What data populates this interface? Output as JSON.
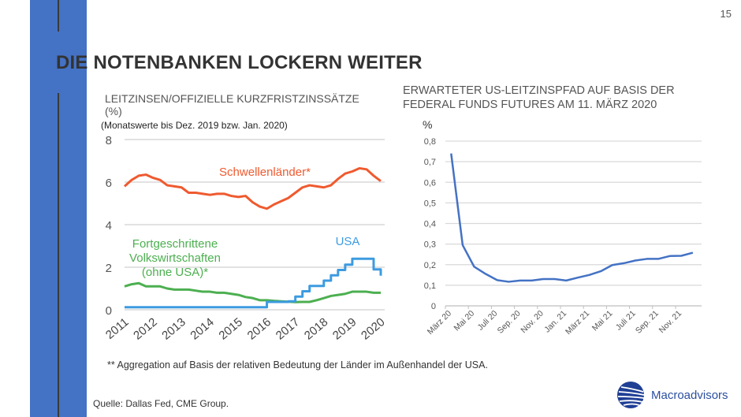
{
  "page_number": "15",
  "title": "DIE NOTENBANKEN LOCKERN WEITER",
  "colors": {
    "accent_bar": "#4472c4",
    "emerging": "#ef5a2f",
    "advanced": "#4caf50",
    "usa": "#3d9be0",
    "us_path": "#4472c4"
  },
  "left_chart_header": {
    "line1": "LEITZINSEN/OFFIZIELLE KURZFRISTZINSSÄTZE",
    "line2": "(%)",
    "note": "(Monatswerte bis Dez. 2019 bzw. Jan. 2020)"
  },
  "right_chart_header": {
    "line1": "ERWARTETER US-LEITZINSPFAD AUF BASIS DER",
    "line2": "FEDERAL FUNDS FUTURES AM 11. MÄRZ 2020"
  },
  "footnote": "** Aggregation auf Basis der relativen Bedeutung der Länder im Außenhandel der USA.",
  "source": "Quelle: Dallas Fed, CME Group.",
  "logo_text": "Macroadvisors",
  "chart_data": [
    {
      "type": "line",
      "title": "LEITZINSEN/OFFIZIELLE KURZFRISTZINSSÄTZE (%)",
      "ylim": [
        0,
        8
      ],
      "yticks": [
        "0",
        "2",
        "4",
        "6",
        "8"
      ],
      "xticks": [
        "2011",
        "2012",
        "2013",
        "2014",
        "2015",
        "2016",
        "2017",
        "2018",
        "2019",
        "2020"
      ],
      "grid": true,
      "x": [
        "2011-Q1",
        "2011-Q2",
        "2011-Q3",
        "2011-Q4",
        "2012-Q1",
        "2012-Q2",
        "2012-Q3",
        "2012-Q4",
        "2013-Q1",
        "2013-Q2",
        "2013-Q3",
        "2013-Q4",
        "2014-Q1",
        "2014-Q2",
        "2014-Q3",
        "2014-Q4",
        "2015-Q1",
        "2015-Q2",
        "2015-Q3",
        "2015-Q4",
        "2016-Q1",
        "2016-Q2",
        "2016-Q3",
        "2016-Q4",
        "2017-Q1",
        "2017-Q2",
        "2017-Q3",
        "2017-Q4",
        "2018-Q1",
        "2018-Q2",
        "2018-Q3",
        "2018-Q4",
        "2019-Q1",
        "2019-Q2",
        "2019-Q3",
        "2019-Q4",
        "2020-Q1"
      ],
      "series": [
        {
          "name": "Schwellenländer*",
          "color": "#ef5a2f",
          "values": [
            5.8,
            6.1,
            6.3,
            6.35,
            6.2,
            6.1,
            5.85,
            5.8,
            5.75,
            5.5,
            5.5,
            5.45,
            5.4,
            5.45,
            5.45,
            5.35,
            5.3,
            5.35,
            5.05,
            4.85,
            4.75,
            4.95,
            5.1,
            5.25,
            5.5,
            5.75,
            5.85,
            5.8,
            5.75,
            5.85,
            6.15,
            6.4,
            6.5,
            6.65,
            6.6,
            6.3,
            6.05
          ]
        },
        {
          "name": "Fortgeschrittene Volkswirtschaften (ohne USA)*",
          "label_lines": [
            "Fortgeschrittene",
            "Volkswirtschaften",
            "(ohne USA)*"
          ],
          "color": "#4caf50",
          "values": [
            1.1,
            1.2,
            1.25,
            1.1,
            1.1,
            1.1,
            1.0,
            0.95,
            0.95,
            0.95,
            0.9,
            0.85,
            0.85,
            0.8,
            0.8,
            0.75,
            0.7,
            0.6,
            0.55,
            0.45,
            0.45,
            0.42,
            0.4,
            0.38,
            0.36,
            0.37,
            0.37,
            0.45,
            0.55,
            0.65,
            0.7,
            0.75,
            0.85,
            0.85,
            0.85,
            0.8,
            0.8
          ]
        },
        {
          "name": "USA",
          "color": "#3d9be0",
          "step": true,
          "values": [
            0.12,
            0.12,
            0.12,
            0.12,
            0.12,
            0.12,
            0.12,
            0.12,
            0.12,
            0.12,
            0.12,
            0.12,
            0.12,
            0.12,
            0.12,
            0.12,
            0.12,
            0.12,
            0.12,
            0.12,
            0.37,
            0.37,
            0.37,
            0.4,
            0.62,
            0.87,
            1.12,
            1.12,
            1.37,
            1.62,
            1.87,
            2.12,
            2.4,
            2.4,
            2.4,
            1.9,
            1.6
          ]
        }
      ]
    },
    {
      "type": "line",
      "title": "ERWARTETER US-LEITZINSPFAD AUF BASIS DER FEDERAL FUNDS FUTURES AM 11. MÄRZ 2020",
      "ylabel": "%",
      "ylim": [
        0,
        0.8
      ],
      "yticks": [
        "0",
        "0,1",
        "0,2",
        "0,3",
        "0,4",
        "0,5",
        "0,6",
        "0,7",
        "0,8"
      ],
      "xticks": [
        "März 20",
        "Mai 20",
        "Juli 20",
        "Sep. 20",
        "Nov. 20",
        "Jan. 21",
        "März 21",
        "Mai 21",
        "Juli 21",
        "Sep. 21",
        "Nov. 21"
      ],
      "grid": true,
      "x": [
        "2020-03",
        "2020-04",
        "2020-05",
        "2020-06",
        "2020-07",
        "2020-08",
        "2020-09",
        "2020-10",
        "2020-11",
        "2020-12",
        "2021-01",
        "2021-02",
        "2021-03",
        "2021-04",
        "2021-05",
        "2021-06",
        "2021-07",
        "2021-08",
        "2021-09",
        "2021-10",
        "2021-11",
        "2021-12"
      ],
      "series": [
        {
          "color": "#4472c4",
          "values": [
            0.74,
            0.295,
            0.19,
            0.155,
            0.125,
            0.117,
            0.123,
            0.123,
            0.13,
            0.13,
            0.123,
            0.137,
            0.15,
            0.168,
            0.198,
            0.207,
            0.22,
            0.228,
            0.228,
            0.242,
            0.243,
            0.258
          ]
        }
      ]
    }
  ]
}
